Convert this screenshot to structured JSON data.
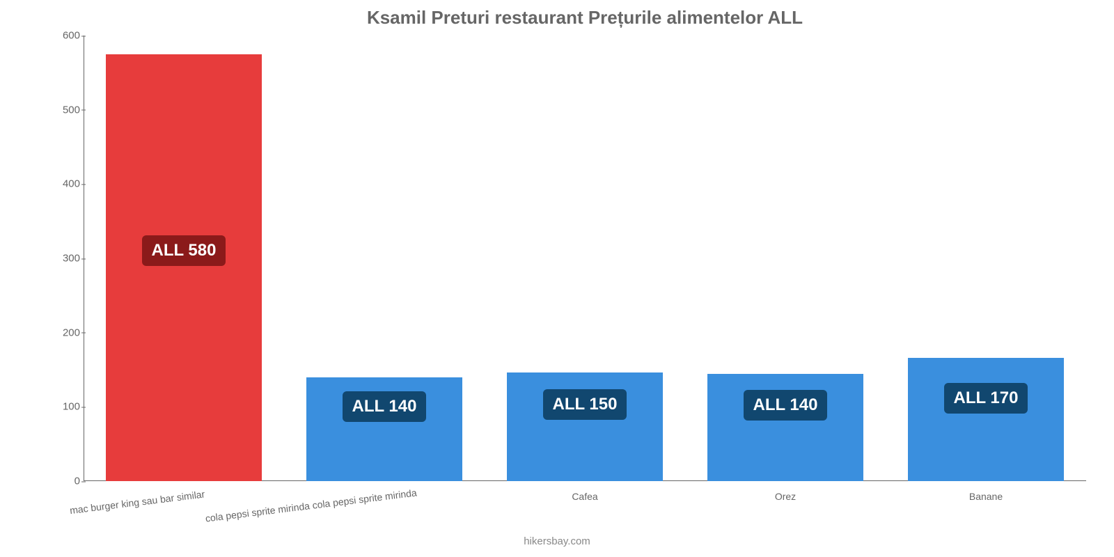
{
  "chart": {
    "type": "bar",
    "title": "Ksamil Preturi restaurant Prețurile alimentelor ALL",
    "title_fontsize": 26,
    "title_color": "#666666",
    "background_color": "#ffffff",
    "axis_color": "#666666",
    "tick_color": "#666666",
    "tick_fontsize": 15,
    "xlabel_fontsize": 14,
    "ylim": [
      0,
      600
    ],
    "ytick_step": 100,
    "yticks": [
      0,
      100,
      200,
      300,
      400,
      500,
      600
    ],
    "bar_width": 0.78,
    "footer": "hikersbay.com",
    "footer_color": "#888888",
    "value_label_fontsize": 24,
    "badge_radius": 6,
    "categories": [
      {
        "label": "mac burger king sau bar similar",
        "rotated": true
      },
      {
        "label": "cola pepsi sprite mirinda cola pepsi sprite mirinda",
        "rotated": true
      },
      {
        "label": "Cafea",
        "rotated": false
      },
      {
        "label": "Orez",
        "rotated": false
      },
      {
        "label": "Banane",
        "rotated": false
      }
    ],
    "series": [
      {
        "bar_height_value": 575,
        "value_label": "ALL 580",
        "bar_color": "#e73c3c",
        "badge_bg": "#8b1a1a",
        "badge_text_color": "#ffffff",
        "badge_y_value": 310
      },
      {
        "bar_height_value": 140,
        "value_label": "ALL 140",
        "bar_color": "#3a8fde",
        "badge_bg": "#11476f",
        "badge_text_color": "#ffffff",
        "badge_y_value": 100
      },
      {
        "bar_height_value": 146,
        "value_label": "ALL 150",
        "bar_color": "#3a8fde",
        "badge_bg": "#11476f",
        "badge_text_color": "#ffffff",
        "badge_y_value": 103
      },
      {
        "bar_height_value": 144,
        "value_label": "ALL 140",
        "bar_color": "#3a8fde",
        "badge_bg": "#11476f",
        "badge_text_color": "#ffffff",
        "badge_y_value": 102
      },
      {
        "bar_height_value": 166,
        "value_label": "ALL 170",
        "bar_color": "#3a8fde",
        "badge_bg": "#11476f",
        "badge_text_color": "#ffffff",
        "badge_y_value": 112
      }
    ]
  }
}
